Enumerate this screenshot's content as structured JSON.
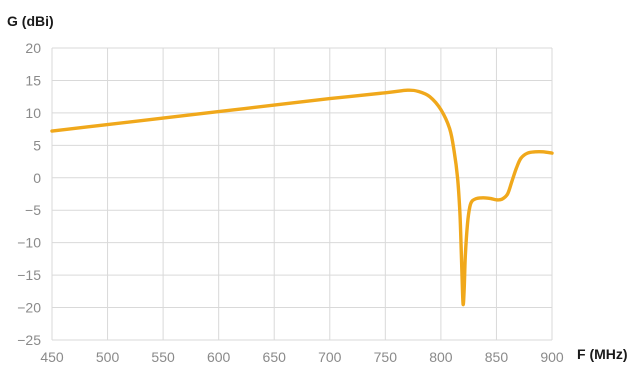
{
  "chart_data": {
    "type": "line",
    "xlabel": "F (MHz)",
    "ylabel": "G (dBi)",
    "xlim": [
      450,
      900
    ],
    "ylim": [
      -25,
      20
    ],
    "xticks": [
      450,
      500,
      550,
      600,
      650,
      700,
      750,
      800,
      850,
      900
    ],
    "yticks": [
      20,
      15,
      10,
      5,
      0,
      -5,
      -10,
      -15,
      -20,
      -25
    ],
    "grid": true,
    "legend": "none",
    "line_color": "#f0a81b",
    "series": [
      {
        "x": [
          450,
          500,
          550,
          600,
          650,
          700,
          750,
          770,
          780,
          790,
          800,
          808,
          812,
          815,
          817,
          818,
          819,
          820,
          821,
          822,
          824,
          826,
          828,
          832,
          836,
          840,
          845,
          850,
          855,
          860,
          864,
          868,
          872,
          878,
          885,
          892,
          900
        ],
        "values": [
          7.2,
          8.2,
          9.2,
          10.2,
          11.2,
          12.2,
          13.1,
          13.5,
          13.3,
          12.5,
          10.5,
          7.5,
          4.0,
          0.0,
          -5.0,
          -9.5,
          -15.0,
          -19.5,
          -17.0,
          -12.0,
          -7.0,
          -4.5,
          -3.6,
          -3.2,
          -3.1,
          -3.1,
          -3.2,
          -3.4,
          -3.3,
          -2.5,
          -0.5,
          1.5,
          3.0,
          3.8,
          4.0,
          4.0,
          3.8
        ]
      }
    ]
  }
}
